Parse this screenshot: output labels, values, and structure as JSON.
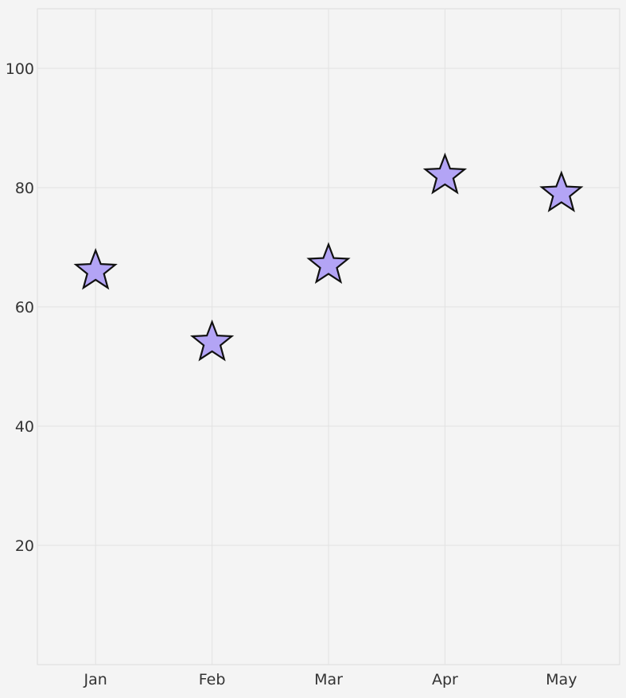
{
  "chart_data": {
    "type": "scatter",
    "title": "",
    "xlabel": "",
    "ylabel": "",
    "categories": [
      "Jan",
      "Feb",
      "Mar",
      "Apr",
      "May"
    ],
    "values": [
      66,
      54,
      67,
      82,
      79
    ],
    "ylim": [
      0,
      110
    ],
    "yticks": [
      20,
      40,
      60,
      80,
      100
    ],
    "grid": true,
    "marker": "star",
    "colors": {
      "marker_fill": "#b3a4f5",
      "marker_stroke": "#111111",
      "grid": "#e2e2e2",
      "background": "#f4f4f4"
    }
  }
}
